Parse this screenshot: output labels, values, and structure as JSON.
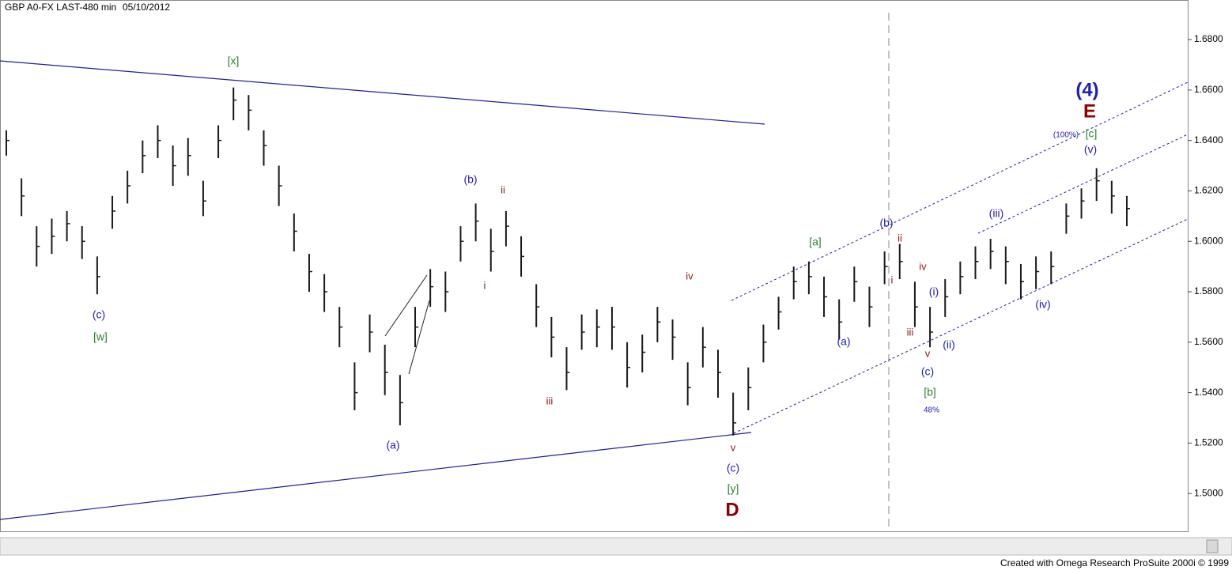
{
  "chart_data": {
    "type": "hlc",
    "title": "GBP A0-FX LAST-480 min",
    "subtitle": "05/10/2012",
    "footer": "Created with Omega Research ProSuite 2000i © 1999",
    "color": "#1a1a1a",
    "ylim": [
      1.485,
      1.6957
    ],
    "yticks": [
      {
        "value": 1.5,
        "label": "1.5000"
      },
      {
        "value": 1.52,
        "label": "1.5200"
      },
      {
        "value": 1.54,
        "label": "1.5400"
      },
      {
        "value": 1.56,
        "label": "1.5600"
      },
      {
        "value": 1.58,
        "label": "1.5800"
      },
      {
        "value": 1.6,
        "label": "1.6000"
      },
      {
        "value": 1.62,
        "label": "1.6200"
      },
      {
        "value": 1.64,
        "label": "1.6400"
      },
      {
        "value": 1.66,
        "label": "1.6600"
      },
      {
        "value": 1.68,
        "label": "1.6800"
      }
    ],
    "high": [
      1.644,
      1.625,
      1.606,
      1.609,
      1.612,
      1.606,
      1.594,
      1.618,
      1.628,
      1.64,
      1.646,
      1.638,
      1.641,
      1.624,
      1.646,
      1.661,
      1.658,
      1.644,
      1.63,
      1.611,
      1.595,
      1.587,
      1.574,
      1.552,
      1.571,
      1.559,
      1.547,
      1.574,
      1.589,
      1.588,
      1.606,
      1.615,
      1.605,
      1.612,
      1.602,
      1.583,
      1.57,
      1.558,
      1.571,
      1.573,
      1.574,
      1.56,
      1.563,
      1.574,
      1.569,
      1.552,
      1.566,
      1.557,
      1.54,
      1.55,
      1.567,
      1.578,
      1.59,
      1.592,
      1.586,
      1.577,
      1.59,
      1.582,
      1.596,
      1.599,
      1.584,
      1.574,
      1.585,
      1.592,
      1.598,
      1.601,
      1.598,
      1.591,
      1.594,
      1.596,
      1.615,
      1.621,
      1.629,
      1.624,
      1.618
    ],
    "low": [
      1.634,
      1.61,
      1.59,
      1.595,
      1.6,
      1.593,
      1.579,
      1.605,
      1.615,
      1.627,
      1.633,
      1.622,
      1.626,
      1.61,
      1.633,
      1.648,
      1.644,
      1.63,
      1.614,
      1.596,
      1.58,
      1.572,
      1.558,
      1.533,
      1.556,
      1.539,
      1.527,
      1.558,
      1.574,
      1.572,
      1.592,
      1.6,
      1.588,
      1.598,
      1.586,
      1.566,
      1.554,
      1.541,
      1.557,
      1.558,
      1.557,
      1.542,
      1.548,
      1.56,
      1.553,
      1.535,
      1.55,
      1.538,
      1.523,
      1.533,
      1.552,
      1.565,
      1.577,
      1.579,
      1.57,
      1.561,
      1.576,
      1.566,
      1.583,
      1.585,
      1.566,
      1.558,
      1.57,
      1.579,
      1.585,
      1.589,
      1.583,
      1.577,
      1.581,
      1.583,
      1.603,
      1.609,
      1.616,
      1.611,
      1.606
    ],
    "close": [
      1.64,
      1.618,
      1.598,
      1.602,
      1.607,
      1.6,
      1.586,
      1.612,
      1.622,
      1.634,
      1.64,
      1.63,
      1.634,
      1.616,
      1.64,
      1.656,
      1.652,
      1.638,
      1.622,
      1.604,
      1.588,
      1.58,
      1.566,
      1.54,
      1.564,
      1.548,
      1.536,
      1.566,
      1.582,
      1.58,
      1.6,
      1.608,
      1.596,
      1.606,
      1.594,
      1.574,
      1.562,
      1.548,
      1.564,
      1.566,
      1.566,
      1.55,
      1.556,
      1.568,
      1.562,
      1.542,
      1.558,
      1.548,
      1.528,
      1.542,
      1.56,
      1.572,
      1.584,
      1.586,
      1.578,
      1.568,
      1.584,
      1.574,
      1.59,
      1.592,
      1.574,
      1.564,
      1.578,
      1.586,
      1.592,
      1.596,
      1.592,
      1.584,
      1.588,
      1.59,
      1.61,
      1.616,
      1.624,
      1.618,
      1.613
    ],
    "annotations": [
      {
        "text": "[x]",
        "color": "#2e7d2e"
      },
      {
        "text": "(c)",
        "color": "#1f1fb0"
      },
      {
        "text": "[w]",
        "color": "#2e7d2e"
      },
      {
        "text": "(a)",
        "color": "#1f1fb0"
      },
      {
        "text": "(b)",
        "color": "#1f1fb0"
      },
      {
        "text": "ii",
        "color": "#8b1a1a"
      },
      {
        "text": "i",
        "color": "#8b1a1a"
      },
      {
        "text": "iii",
        "color": "#8b1a1a"
      },
      {
        "text": "iv",
        "color": "#8b1a1a"
      },
      {
        "text": "v",
        "color": "#8b1a1a"
      },
      {
        "text": "(c)",
        "color": "#1f1fb0"
      },
      {
        "text": "[y]",
        "color": "#2e7d2e"
      },
      {
        "text": "D",
        "color": "#8b0000"
      },
      {
        "text": "[a]",
        "color": "#2e7d2e"
      },
      {
        "text": "(a)",
        "color": "#1f1fb0"
      },
      {
        "text": "(b)",
        "color": "#1f1fb0"
      },
      {
        "text": "ii",
        "color": "#8b1a1a"
      },
      {
        "text": "i",
        "color": "#8b1a1a"
      },
      {
        "text": "iv",
        "color": "#8b1a1a"
      },
      {
        "text": "iii",
        "color": "#8b1a1a"
      },
      {
        "text": "v",
        "color": "#8b1a1a"
      },
      {
        "text": "(i)",
        "color": "#1f1fb0"
      },
      {
        "text": "(ii)",
        "color": "#1f1fb0"
      },
      {
        "text": "(c)",
        "color": "#1f1fb0"
      },
      {
        "text": "[b]",
        "color": "#2e7d2e"
      },
      {
        "text": "48%",
        "color": "#1f1fb0"
      },
      {
        "text": "(iii)",
        "color": "#1f1fb0"
      },
      {
        "text": "(iv)",
        "color": "#1f1fb0"
      },
      {
        "text": "(v)",
        "color": "#1f1fb0"
      },
      {
        "text": "[c]",
        "color": "#2e7d2e"
      },
      {
        "text": "(100%)",
        "color": "#1f1fb0"
      },
      {
        "text": "E",
        "color": "#8b0000"
      },
      {
        "text": "(4)",
        "color": "#1f1fb0"
      }
    ]
  }
}
